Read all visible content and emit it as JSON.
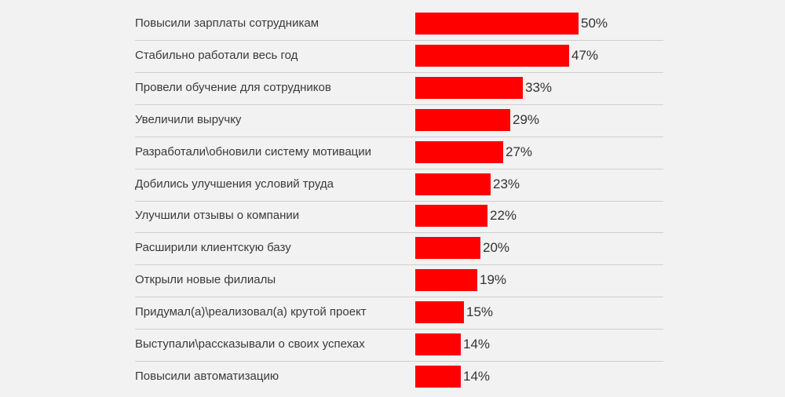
{
  "chart_data": {
    "type": "bar",
    "orientation": "horizontal",
    "categories": [
      "Повысили зарплаты сотрудникам",
      "Стабильно работали весь год",
      "Провели обучение для сотрудников",
      "Увеличили выручку",
      "Разработали\\обновили систему мотивации",
      "Добились улучшения условий труда",
      "Улучшили отзывы о компании",
      "Расширили клиентскую базу",
      "Открыли новые филиалы",
      "Придумал(а)\\реализовал(а) крутой проект",
      "Выступали\\рассказывали о своих успехах",
      "Повысили автоматизацию"
    ],
    "values": [
      50,
      47,
      33,
      29,
      27,
      23,
      22,
      20,
      19,
      15,
      14,
      14
    ],
    "value_labels": [
      "50%",
      "47%",
      "33%",
      "29%",
      "27%",
      "23%",
      "22%",
      "20%",
      "19%",
      "15%",
      "14%",
      "14%"
    ],
    "unit": "%",
    "xlim": [
      0,
      50
    ],
    "bar_color": "#ff0000",
    "grid": false
  }
}
